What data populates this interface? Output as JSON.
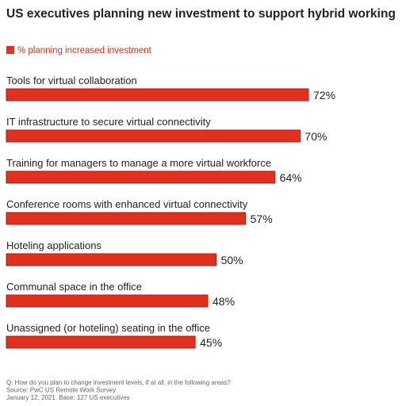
{
  "chart_data": {
    "type": "bar",
    "orientation": "horizontal",
    "title": "US executives planning new investment to support hybrid working",
    "categories": [
      "Tools for virtual collaboration",
      "IT infrastructure to secure virtual connectivity",
      "Training for managers to manage a more virtual workforce",
      "Conference rooms with enhanced virtual connectivity",
      "Hoteling applications",
      "Communal space in the office",
      "Unassigned (or hoteling) seating in the office"
    ],
    "series": [
      {
        "name": "% planning increased investment",
        "color": "#e0301e",
        "edge_color": "#a32020",
        "values": [
          72,
          70,
          64,
          57,
          50,
          48,
          45
        ],
        "value_labels": [
          "72%",
          "70%",
          "64%",
          "57%",
          "50%",
          "48%",
          "45%"
        ]
      }
    ],
    "footnotes": [
      "Q: How do you plan to change investment levels, if at all, in the following areas?",
      "Source: PwC US Remote Work Survey",
      "January 12, 2021. Base: 127 US executives"
    ]
  }
}
